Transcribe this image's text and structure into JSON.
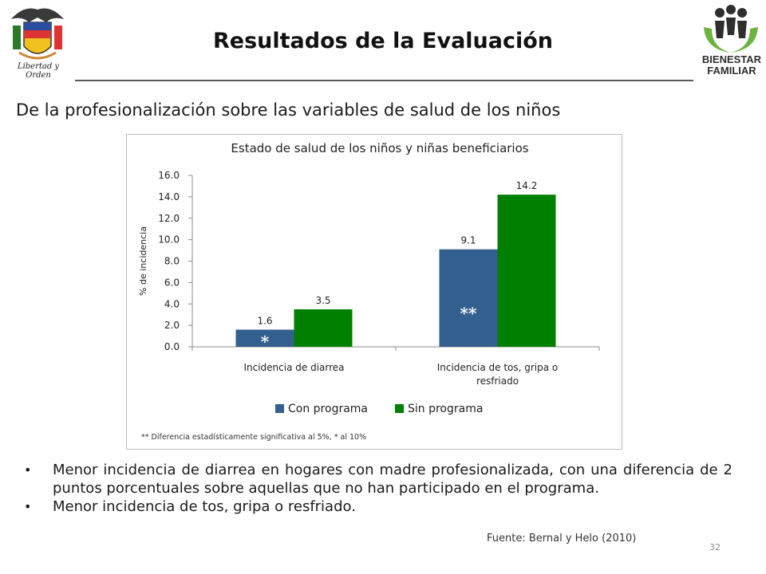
{
  "header": {
    "title": "Resultados de la Evaluación",
    "left_logo_caption": "Libertad y Orden",
    "right_logo_line1": "BIENESTAR",
    "right_logo_line2": "FAMILIAR"
  },
  "subtitle": "De la profesionalización sobre las variables de salud de los niños",
  "chart_data": {
    "type": "bar",
    "title": "Estado de salud de los niños y niñas beneficiarios",
    "ylabel": "% de incidencia",
    "xlabel": "",
    "ylim": [
      0,
      16
    ],
    "yticks": [
      "0.0",
      "2.0",
      "4.0",
      "6.0",
      "8.0",
      "10.0",
      "12.0",
      "14.0",
      "16.0"
    ],
    "categories": [
      "Incidencia de diarrea",
      "Incidencia de tos, gripa o resfriado"
    ],
    "category_lines": [
      [
        "Incidencia de diarrea"
      ],
      [
        "Incidencia de tos, gripa o",
        "resfriado"
      ]
    ],
    "series": [
      {
        "name": "Con programa",
        "values": [
          1.6,
          9.1
        ],
        "labels": [
          "1.6",
          "9.1"
        ],
        "color": "#34608f"
      },
      {
        "name": "Sin programa",
        "values": [
          3.5,
          14.2
        ],
        "labels": [
          "3.5",
          "14.2"
        ],
        "color": "#008000"
      }
    ],
    "significance_marks": [
      "*",
      "**"
    ],
    "legend_position": "bottom",
    "grid": false,
    "footnote": "** Diferencia estadísticamente significativa al 5%, * al 10%"
  },
  "bullets": [
    "Menor incidencia de diarrea en hogares con madre profesionalizada, con una diferencia de 2 puntos porcentuales sobre aquellas que no han participado en el programa.",
    "Menor incidencia de tos, gripa o resfriado."
  ],
  "source": "Fuente: Bernal y Helo (2010)",
  "page_number": "32"
}
